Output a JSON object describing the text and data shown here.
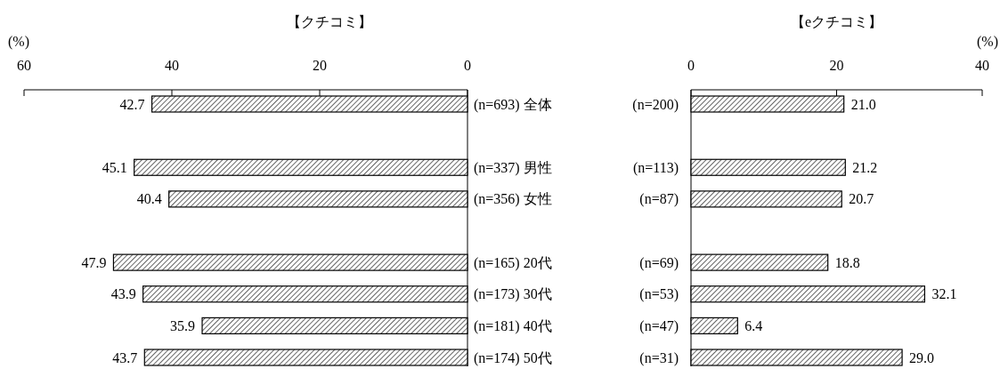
{
  "chart_data": [
    {
      "type": "bar",
      "orientation": "horizontal",
      "title": "【クチコミ】",
      "xlabel": "(%)",
      "categories": [
        "(n=693) 全体",
        null,
        "(n=337) 男性",
        "(n=356) 女性",
        null,
        "(n=165) 20代",
        "(n=173) 30代",
        "(n=181) 40代",
        "(n=174) 50代"
      ],
      "values": [
        42.7,
        null,
        45.1,
        40.4,
        null,
        47.9,
        43.9,
        35.9,
        43.7
      ],
      "value_labels": [
        "42.7",
        null,
        "45.1",
        "40.4",
        null,
        "47.9",
        "43.9",
        "35.9",
        "43.7"
      ],
      "color": "#000000",
      "xlim": [
        60,
        0
      ],
      "xticks": [
        60,
        40,
        20,
        0
      ]
    },
    {
      "type": "bar",
      "orientation": "horizontal",
      "title": "【eクチコミ】",
      "xlabel": "(%)",
      "categories": [
        "(n=200)",
        null,
        "(n=113)",
        "(n=87)",
        null,
        "(n=69)",
        "(n=53)",
        "(n=47)",
        "(n=31)"
      ],
      "values": [
        21.0,
        null,
        21.2,
        20.7,
        null,
        18.8,
        32.1,
        6.4,
        29.0
      ],
      "value_labels": [
        "21.0",
        null,
        "21.2",
        "20.7",
        null,
        "18.8",
        "32.1",
        "6.4",
        "29.0"
      ],
      "color": "#000000",
      "xlim": [
        0,
        40
      ],
      "xticks": [
        0,
        20,
        40
      ]
    }
  ]
}
